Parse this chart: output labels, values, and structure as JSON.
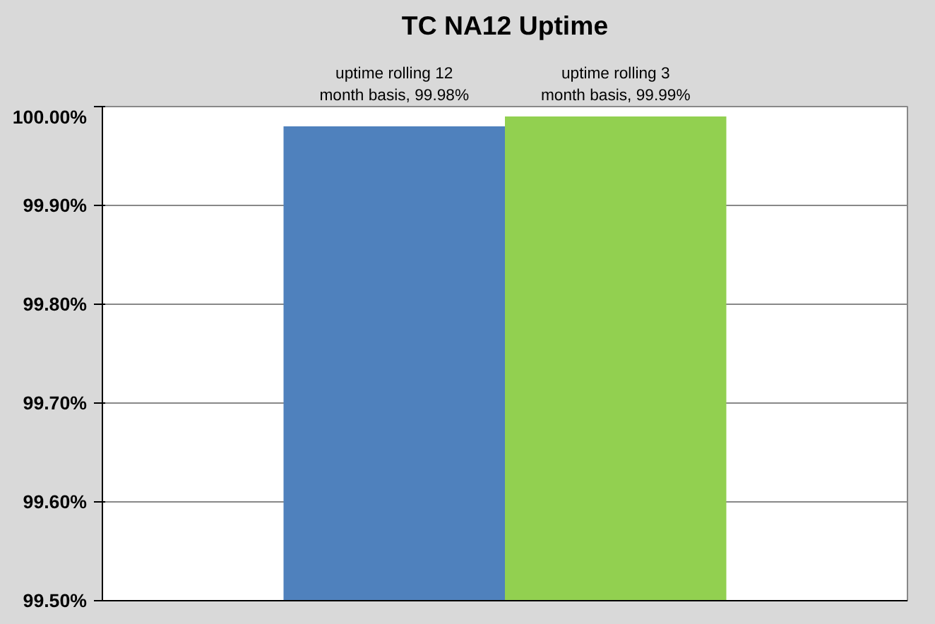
{
  "chart_data": {
    "type": "bar",
    "title": "TC NA12 Uptime",
    "categories": [
      null
    ],
    "series": [
      {
        "color": "#4f81bd",
        "values": [
          99.98
        ],
        "value_labels": [
          "uptime rolling 12 month basis, 99.98%"
        ]
      },
      {
        "color": "#92d050",
        "values": [
          99.99
        ],
        "value_labels": [
          "uptime rolling 3 month basis, 99.99%"
        ]
      }
    ],
    "ylim": [
      99.5,
      100.0
    ],
    "yticks": [
      {
        "value": 99.5,
        "label": "99.50%"
      },
      {
        "value": 99.6,
        "label": "99.60%"
      },
      {
        "value": 99.7,
        "label": "99.70%"
      },
      {
        "value": 99.8,
        "label": "99.80%"
      },
      {
        "value": 99.9,
        "label": "99.90%"
      },
      {
        "value": 100.0,
        "label": "100.00%"
      }
    ],
    "grid": "y",
    "legend": false
  }
}
